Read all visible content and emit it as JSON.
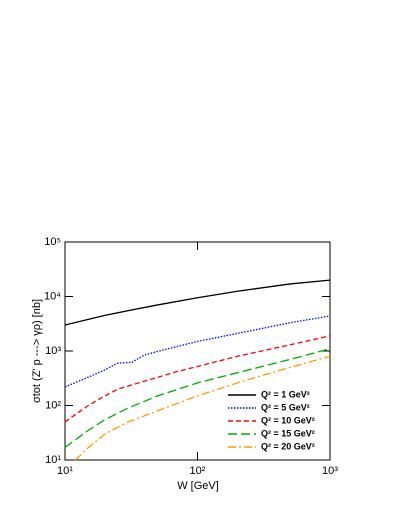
{
  "chart_data": {
    "type": "line",
    "x_label": "W [GeV]",
    "y_label": "σtot (Z' p ---> γρ) [nb]",
    "xscale": "log",
    "yscale": "log",
    "xlim": [
      10,
      1000
    ],
    "ylim": [
      10,
      100000
    ],
    "xticks": [
      {
        "value": 10,
        "label": "10¹"
      },
      {
        "value": 100,
        "label": "10²"
      },
      {
        "value": 1000,
        "label": "10³"
      }
    ],
    "yticks": [
      {
        "value": 10,
        "label": "10¹"
      },
      {
        "value": 100,
        "label": "10²"
      },
      {
        "value": 1000,
        "label": "10³"
      },
      {
        "value": 10000,
        "label": "10⁴"
      },
      {
        "value": 100000,
        "label": "10⁵"
      }
    ],
    "legend_position": "lower right",
    "series": [
      {
        "name": "Q² = 1 GeV²",
        "color": "#000000",
        "dash": "solid",
        "x": [
          10,
          20,
          30,
          50,
          100,
          200,
          500,
          1000
        ],
        "values": [
          3000,
          4500,
          5500,
          7000,
          9500,
          12500,
          17000,
          20000
        ]
      },
      {
        "name": "Q² = 5 GeV²",
        "color": "#0000ff",
        "dash": "dotted",
        "x": [
          10,
          15,
          20,
          25,
          32,
          40,
          60,
          100,
          200,
          500,
          1000
        ],
        "values": [
          220,
          330,
          450,
          600,
          620,
          850,
          1100,
          1500,
          2100,
          3300,
          4400
        ]
      },
      {
        "name": "Q² = 10 GeV²",
        "color": "#ff0000",
        "dash": "dashed",
        "x": [
          10,
          15,
          20,
          25,
          40,
          70,
          100,
          200,
          500,
          1000
        ],
        "values": [
          50,
          100,
          150,
          200,
          280,
          420,
          520,
          800,
          1300,
          1900
        ]
      },
      {
        "name": "Q² = 15 GeV²",
        "color": "#00aa00",
        "dash": "longdash",
        "x": [
          10,
          15,
          20,
          30,
          50,
          100,
          200,
          500,
          1000
        ],
        "values": [
          17,
          35,
          55,
          90,
          150,
          260,
          400,
          700,
          1100
        ]
      },
      {
        "name": "Q² = 20 GeV²",
        "color": "#ff9900",
        "dash": "dashdot",
        "x": [
          12,
          15,
          20,
          30,
          50,
          100,
          200,
          500,
          1000
        ],
        "values": [
          10,
          17,
          30,
          50,
          80,
          150,
          260,
          500,
          800
        ]
      }
    ]
  }
}
